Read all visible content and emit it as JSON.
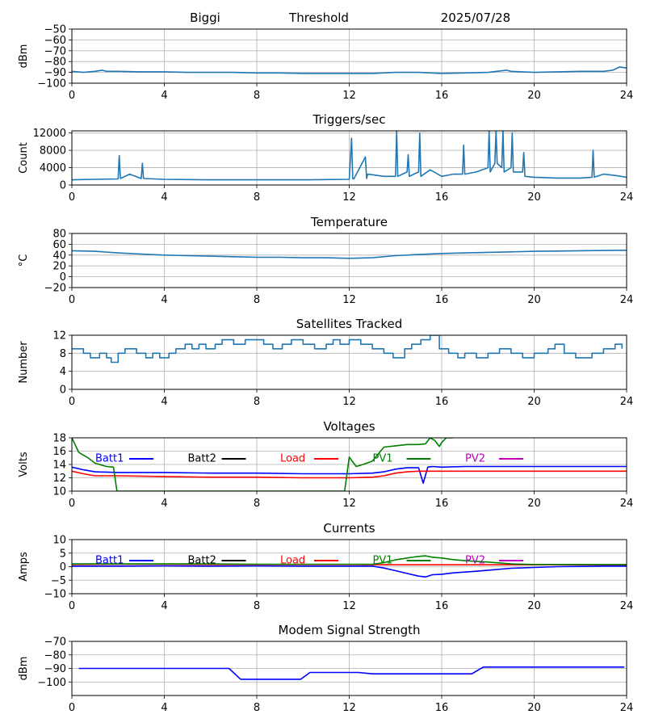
{
  "header": {
    "left": "Biggi",
    "middle": "Threshold",
    "right": "2025/07/28"
  },
  "colors": {
    "default": "#1f77b4",
    "batt1": "#0000ff",
    "batt2": "#000000",
    "load": "#ff0000",
    "pv1": "#008000",
    "pv2": "#bf00bf"
  },
  "chart_data": [
    {
      "type": "line",
      "title": "",
      "ylabel": "dBm",
      "xlim": [
        0,
        24
      ],
      "ylim": [
        -100,
        -50
      ],
      "xticks": [
        0,
        4,
        8,
        12,
        16,
        20,
        24
      ],
      "yticks": [
        -100,
        -90,
        -80,
        -70,
        -60,
        -50
      ],
      "grid": true,
      "series": [
        {
          "color": "#1f77b4",
          "x": [
            0,
            0.5,
            1,
            1.3,
            1.5,
            2,
            3,
            4,
            5,
            6,
            7,
            8,
            9,
            10,
            11,
            12,
            13,
            14,
            15,
            16,
            17,
            18,
            18.8,
            19,
            20,
            21,
            22,
            23,
            23.4,
            23.7,
            24
          ],
          "y": [
            -89,
            -90,
            -89,
            -88,
            -89,
            -89,
            -89.5,
            -89.5,
            -90,
            -90,
            -90,
            -90.5,
            -90.5,
            -91,
            -91,
            -91,
            -91,
            -90,
            -90,
            -91,
            -90.5,
            -90,
            -88,
            -89,
            -90,
            -89.5,
            -89,
            -89,
            -88,
            -85,
            -86
          ]
        }
      ]
    },
    {
      "type": "line",
      "title": "Triggers/sec",
      "ylabel": "Count",
      "xlim": [
        0,
        24
      ],
      "ylim": [
        0,
        12500
      ],
      "xticks": [
        0,
        4,
        8,
        12,
        16,
        20,
        24
      ],
      "yticks": [
        0,
        4000,
        8000,
        12000
      ],
      "grid": true,
      "series": [
        {
          "color": "#1f77b4",
          "x": [
            0,
            1,
            2,
            2.05,
            2.1,
            2.5,
            3,
            3.05,
            3.1,
            4,
            6,
            8,
            10,
            12,
            12.1,
            12.15,
            12.2,
            12.7,
            12.75,
            12.8,
            13.5,
            14,
            14.05,
            14.1,
            14.5,
            14.55,
            14.6,
            15,
            15.05,
            15.1,
            15.5,
            16,
            16.5,
            16.9,
            16.95,
            17,
            17.5,
            18,
            18.05,
            18.1,
            18.3,
            18.35,
            18.4,
            18.6,
            18.65,
            18.7,
            19,
            19.05,
            19.1,
            19.5,
            19.55,
            19.6,
            20,
            21,
            22,
            22.5,
            22.55,
            22.6,
            23,
            23.5,
            24
          ],
          "y": [
            1200,
            1300,
            1400,
            6800,
            1500,
            2500,
            1500,
            5000,
            1500,
            1300,
            1200,
            1200,
            1200,
            1300,
            10800,
            1500,
            1400,
            6500,
            1500,
            2500,
            2000,
            2000,
            12500,
            2000,
            3000,
            7000,
            2000,
            3000,
            12000,
            2000,
            3500,
            2000,
            2500,
            2500,
            9200,
            2500,
            3000,
            4000,
            12500,
            3000,
            5000,
            12500,
            5000,
            4000,
            12500,
            3000,
            4000,
            12000,
            3000,
            3000,
            7500,
            2000,
            1800,
            1600,
            1600,
            1800,
            8000,
            1800,
            2500,
            2200,
            1800
          ]
        }
      ]
    },
    {
      "type": "line",
      "title": "Temperature",
      "ylabel": "°C",
      "xlim": [
        0,
        24
      ],
      "ylim": [
        -20,
        80
      ],
      "xticks": [
        0,
        4,
        8,
        12,
        16,
        20,
        24
      ],
      "yticks": [
        -20,
        0,
        20,
        40,
        60,
        80
      ],
      "grid": true,
      "series": [
        {
          "color": "#1f77b4",
          "x": [
            0,
            1,
            2,
            3,
            4,
            5,
            6,
            7,
            8,
            9,
            10,
            11,
            12,
            13,
            14,
            15,
            16,
            17,
            18,
            19,
            20,
            21,
            22,
            23,
            24
          ],
          "y": [
            48,
            47,
            44,
            42,
            40,
            39,
            38,
            37,
            36,
            36,
            35,
            35,
            34,
            35,
            39,
            41,
            43,
            44,
            45,
            46,
            47,
            47.5,
            48,
            48.5,
            49
          ]
        }
      ]
    },
    {
      "type": "line",
      "title": "Satellites Tracked",
      "ylabel": "Number",
      "xlim": [
        0,
        24
      ],
      "ylim": [
        0,
        12
      ],
      "xticks": [
        0,
        4,
        8,
        12,
        16,
        20,
        24
      ],
      "yticks": [
        0,
        4,
        8,
        12
      ],
      "grid": true,
      "step": true,
      "series": [
        {
          "color": "#1f77b4",
          "x": [
            0,
            0.5,
            0.8,
            1.2,
            1.5,
            1.7,
            2.0,
            2.3,
            2.8,
            3.2,
            3.5,
            3.8,
            4.2,
            4.5,
            4.9,
            5.2,
            5.5,
            5.8,
            6.2,
            6.5,
            7,
            7.5,
            8.3,
            8.7,
            9.1,
            9.5,
            10,
            10.5,
            11,
            11.3,
            11.6,
            12,
            12.5,
            13,
            13.5,
            13.9,
            14.4,
            14.7,
            15.1,
            15.5,
            15.9,
            16.3,
            16.7,
            17,
            17.5,
            18,
            18.5,
            19,
            19.5,
            20,
            20.6,
            20.9,
            21.3,
            21.8,
            22.5,
            23,
            23.5,
            23.8
          ],
          "y": [
            9,
            8,
            7,
            8,
            7,
            6,
            8,
            9,
            8,
            7,
            8,
            7,
            8,
            9,
            10,
            9,
            10,
            9,
            10,
            11,
            10,
            11,
            10,
            9,
            10,
            11,
            10,
            9,
            10,
            11,
            10,
            11,
            10,
            9,
            8,
            7,
            9,
            10,
            11,
            12,
            9,
            8,
            7,
            8,
            7,
            8,
            9,
            8,
            7,
            8,
            9,
            10,
            8,
            7,
            8,
            9,
            10,
            9
          ]
        }
      ]
    },
    {
      "type": "line",
      "title": "Voltages",
      "ylabel": "Volts",
      "xlim": [
        0,
        24
      ],
      "ylim": [
        10,
        18
      ],
      "xticks": [
        0,
        4,
        8,
        12,
        16,
        20,
        24
      ],
      "yticks": [
        10,
        12,
        14,
        16,
        18
      ],
      "grid": true,
      "legend": "top",
      "series": [
        {
          "name": "Batt1",
          "color": "#0000ff",
          "x": [
            0,
            0.5,
            1,
            2,
            4,
            6,
            8,
            10,
            12,
            13,
            13.5,
            14,
            14.5,
            15,
            15.2,
            15.4,
            15.6,
            16,
            17,
            18,
            20,
            22,
            24
          ],
          "y": [
            13.6,
            13.2,
            12.9,
            12.8,
            12.8,
            12.7,
            12.7,
            12.6,
            12.6,
            12.7,
            12.9,
            13.3,
            13.5,
            13.5,
            11.2,
            13.6,
            13.7,
            13.6,
            13.7,
            13.7,
            13.7,
            13.7,
            13.7
          ]
        },
        {
          "name": "Batt2",
          "color": "#000000",
          "x": [],
          "y": []
        },
        {
          "name": "Load",
          "color": "#ff0000",
          "x": [
            0,
            0.5,
            1,
            2,
            4,
            6,
            8,
            10,
            12,
            13,
            13.5,
            14,
            14.5,
            15,
            16,
            17,
            18,
            20,
            22,
            24
          ],
          "y": [
            13.0,
            12.6,
            12.3,
            12.3,
            12.2,
            12.1,
            12.1,
            12.0,
            12.0,
            12.1,
            12.3,
            12.7,
            12.9,
            13.0,
            13.0,
            13.0,
            13.0,
            13.0,
            13.0,
            13.0
          ]
        },
        {
          "name": "PV1",
          "color": "#008000",
          "x": [
            0,
            0.3,
            0.7,
            1,
            1.5,
            1.8,
            1.95,
            11.8,
            12.0,
            12.3,
            12.6,
            13,
            13.5,
            14,
            14.5,
            15,
            15.3,
            15.5,
            15.7,
            15.9,
            16.0,
            16.2,
            16.5
          ],
          "y": [
            18,
            15.8,
            15,
            14.2,
            13.7,
            13.6,
            10,
            10,
            15.1,
            13.7,
            14.0,
            14.5,
            16.6,
            16.8,
            17.0,
            17.0,
            17.1,
            18,
            17.6,
            16.7,
            17.3,
            18,
            18
          ]
        },
        {
          "name": "PV2",
          "color": "#bf00bf",
          "x": [],
          "y": []
        }
      ]
    },
    {
      "type": "line",
      "title": "Currents",
      "ylabel": "Amps",
      "xlim": [
        0,
        24
      ],
      "ylim": [
        -10,
        10
      ],
      "xticks": [
        0,
        4,
        8,
        12,
        16,
        20,
        24
      ],
      "yticks": [
        -10,
        -5,
        0,
        5,
        10
      ],
      "grid": true,
      "legend": "top",
      "series": [
        {
          "name": "Batt1",
          "color": "#0000ff",
          "x": [
            0,
            2,
            4,
            6,
            8,
            10,
            12,
            13,
            13.5,
            14,
            14.5,
            15,
            15.3,
            15.6,
            16,
            16.5,
            17,
            17.5,
            18,
            19,
            20,
            21,
            22,
            23,
            24
          ],
          "y": [
            0.2,
            0.2,
            0.3,
            0.2,
            0.3,
            0.2,
            0.2,
            0.2,
            -0.5,
            -1.5,
            -2.5,
            -3.5,
            -3.8,
            -3.0,
            -2.8,
            -2.3,
            -2.0,
            -1.7,
            -1.3,
            -0.6,
            -0.3,
            0,
            0.1,
            0.2,
            0.2
          ]
        },
        {
          "name": "Batt2",
          "color": "#000000",
          "x": [],
          "y": []
        },
        {
          "name": "Load",
          "color": "#ff0000",
          "x": [
            0,
            2,
            4,
            6,
            8,
            10,
            12,
            14,
            16,
            18,
            20,
            22,
            24
          ],
          "y": [
            0.8,
            0.9,
            0.9,
            0.8,
            0.8,
            0.8,
            0.8,
            0.7,
            0.7,
            0.7,
            0.7,
            0.7,
            0.7
          ]
        },
        {
          "name": "PV1",
          "color": "#008000",
          "x": [
            0,
            2,
            4,
            6,
            8,
            10,
            12,
            13,
            13.5,
            14,
            14.5,
            15,
            15.3,
            15.6,
            16,
            16.5,
            17,
            18,
            19,
            20,
            21,
            22,
            24
          ],
          "y": [
            1.0,
            1.0,
            1.0,
            1.0,
            0.9,
            0.9,
            0.9,
            0.9,
            1.5,
            2.5,
            3.2,
            3.8,
            4.0,
            3.5,
            3.2,
            2.6,
            2.2,
            1.7,
            1.0,
            0.8,
            0.8,
            0.8,
            0.8
          ]
        },
        {
          "name": "PV2",
          "color": "#bf00bf",
          "x": [],
          "y": []
        }
      ]
    },
    {
      "type": "line",
      "title": "Modem Signal Strength",
      "ylabel": "dBm",
      "xlim": [
        0,
        24
      ],
      "ylim": [
        -110,
        -70
      ],
      "xticks": [
        0,
        4,
        8,
        12,
        16,
        20,
        24
      ],
      "yticks": [
        -100,
        -90,
        -80,
        -70
      ],
      "grid": true,
      "series": [
        {
          "color": "#0000ff",
          "x": [
            0.3,
            6.8,
            7.3,
            9.9,
            10.3,
            12.4,
            13,
            17.3,
            17.8,
            23.9
          ],
          "y": [
            -90,
            -90,
            -98,
            -98,
            -93,
            -93,
            -94,
            -94,
            -89,
            -89
          ]
        }
      ]
    }
  ]
}
